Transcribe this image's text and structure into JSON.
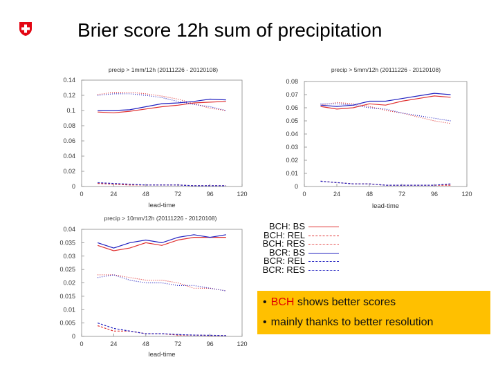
{
  "slide": {
    "title": "Brier score 12h sum of precipitation",
    "logo_icon": "swiss-cross-shield-icon",
    "logo_color": "#e30613"
  },
  "legend": [
    {
      "label": "BCH: BS",
      "color": "#e03030",
      "dash": "solid"
    },
    {
      "label": "BCH: REL",
      "color": "#e03030",
      "dash": "dotted"
    },
    {
      "label": "BCH: RES",
      "color": "#e03030",
      "dash": "dotted"
    },
    {
      "label": "BCR: BS",
      "color": "#2020c0",
      "dash": "solid"
    },
    {
      "label": "BCR: REL",
      "color": "#2020c0",
      "dash": "dotted"
    },
    {
      "label": "BCR: RES",
      "color": "#2020c0",
      "dash": "dotted"
    }
  ],
  "callout": {
    "background": "#ffc000",
    "line1_highlight": "BCH",
    "line1_rest": " shows better scores",
    "line2": "mainly thanks to better resolution",
    "highlight_color": "#e00000"
  },
  "chart_data": [
    {
      "type": "line",
      "title": "precip > 1mm/12h (20111226 - 20120108)",
      "xlabel": "lead-time",
      "ylabel": "",
      "xlim": [
        0,
        120
      ],
      "ylim": [
        0,
        0.14
      ],
      "xticks": [
        "0",
        "24",
        "48",
        "72",
        "96",
        "120"
      ],
      "yticks": [
        "0",
        "0.02",
        "0.04",
        "0.06",
        "0.08",
        "0.1",
        "0.12",
        "0.14"
      ],
      "x": [
        12,
        24,
        36,
        48,
        60,
        72,
        84,
        96,
        108
      ],
      "series": [
        {
          "name": "BCH: BS",
          "values": [
            0.098,
            0.097,
            0.099,
            0.102,
            0.105,
            0.107,
            0.11,
            0.111,
            0.112
          ]
        },
        {
          "name": "BCH: REL",
          "values": [
            0.004,
            0.003,
            0.002,
            0.002,
            0.002,
            0.002,
            0.001,
            0.001,
            0.001
          ]
        },
        {
          "name": "BCH: RES",
          "values": [
            0.121,
            0.124,
            0.124,
            0.122,
            0.119,
            0.115,
            0.109,
            0.103,
            0.1
          ]
        },
        {
          "name": "BCR: BS",
          "values": [
            0.1,
            0.1,
            0.101,
            0.105,
            0.109,
            0.11,
            0.112,
            0.115,
            0.114
          ]
        },
        {
          "name": "BCR: REL",
          "values": [
            0.005,
            0.004,
            0.003,
            0.002,
            0.002,
            0.002,
            0.001,
            0.001,
            0.001
          ]
        },
        {
          "name": "BCR: RES",
          "values": [
            0.12,
            0.122,
            0.122,
            0.12,
            0.117,
            0.112,
            0.108,
            0.105,
            0.1
          ]
        }
      ]
    },
    {
      "type": "line",
      "title": "precip > 5mm/12h (20111226 - 20120108)",
      "xlabel": "lead-time",
      "ylabel": "",
      "xlim": [
        0,
        120
      ],
      "ylim": [
        0,
        0.08
      ],
      "xticks": [
        "0",
        "24",
        "48",
        "72",
        "96",
        "120"
      ],
      "yticks": [
        "0",
        "0.01",
        "0.02",
        "0.03",
        "0.04",
        "0.05",
        "0.06",
        "0.07",
        "0.08"
      ],
      "x": [
        12,
        24,
        36,
        48,
        60,
        72,
        84,
        96,
        108
      ],
      "series": [
        {
          "name": "BCH: BS",
          "values": [
            0.061,
            0.059,
            0.06,
            0.063,
            0.062,
            0.065,
            0.067,
            0.069,
            0.068
          ]
        },
        {
          "name": "BCH: REL",
          "values": [
            0.004,
            0.003,
            0.002,
            0.002,
            0.001,
            0.001,
            0.001,
            0.001,
            0.001
          ]
        },
        {
          "name": "BCH: RES",
          "values": [
            0.062,
            0.064,
            0.063,
            0.061,
            0.058,
            0.056,
            0.053,
            0.05,
            0.048
          ]
        },
        {
          "name": "BCR: BS",
          "values": [
            0.062,
            0.061,
            0.062,
            0.065,
            0.065,
            0.067,
            0.069,
            0.071,
            0.07
          ]
        },
        {
          "name": "BCR: REL",
          "values": [
            0.004,
            0.003,
            0.002,
            0.002,
            0.001,
            0.001,
            0.001,
            0.001,
            0.002
          ]
        },
        {
          "name": "BCR: RES",
          "values": [
            0.063,
            0.063,
            0.062,
            0.06,
            0.059,
            0.056,
            0.054,
            0.052,
            0.05
          ]
        }
      ]
    },
    {
      "type": "line",
      "title": "precip > 10mm/12h (20111226 - 20120108)",
      "xlabel": "lead-time",
      "ylabel": "",
      "xlim": [
        0,
        120
      ],
      "ylim": [
        0,
        0.04
      ],
      "xticks": [
        "0",
        "24",
        "48",
        "72",
        "96",
        "120"
      ],
      "yticks": [
        "0",
        "0.005",
        "0.01",
        "0.015",
        "0.02",
        "0.025",
        "0.03",
        "0.035",
        "0.04"
      ],
      "x": [
        12,
        24,
        36,
        48,
        60,
        72,
        84,
        96,
        108
      ],
      "series": [
        {
          "name": "BCH: BS",
          "values": [
            0.034,
            0.032,
            0.033,
            0.035,
            0.034,
            0.036,
            0.037,
            0.037,
            0.037
          ]
        },
        {
          "name": "BCH: REL",
          "values": [
            0.004,
            0.002,
            0.002,
            0.001,
            0.001,
            0.0005,
            0.0005,
            0.0003,
            0.0003
          ]
        },
        {
          "name": "BCH: RES",
          "values": [
            0.023,
            0.023,
            0.022,
            0.021,
            0.021,
            0.02,
            0.018,
            0.018,
            0.017
          ]
        },
        {
          "name": "BCR: BS",
          "values": [
            0.035,
            0.033,
            0.035,
            0.036,
            0.035,
            0.037,
            0.038,
            0.037,
            0.038
          ]
        },
        {
          "name": "BCR: REL",
          "values": [
            0.005,
            0.003,
            0.002,
            0.001,
            0.001,
            0.0007,
            0.0005,
            0.0004,
            0.0003
          ]
        },
        {
          "name": "BCR: RES",
          "values": [
            0.022,
            0.023,
            0.021,
            0.02,
            0.02,
            0.019,
            0.019,
            0.018,
            0.017
          ]
        }
      ]
    }
  ]
}
